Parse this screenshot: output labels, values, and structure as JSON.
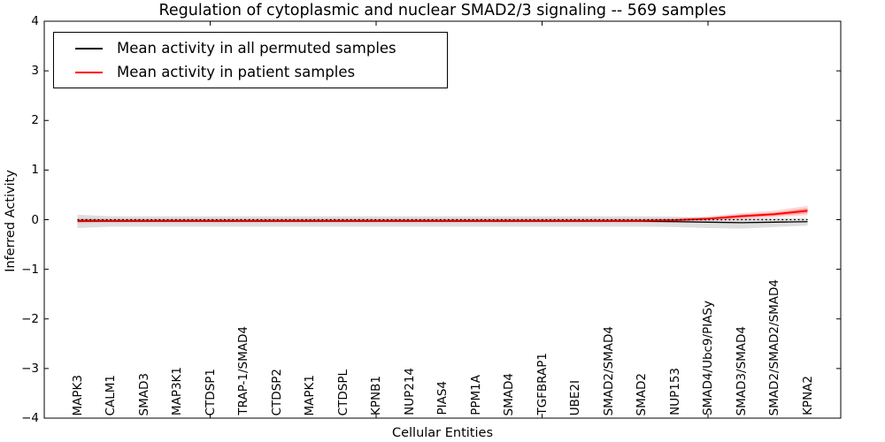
{
  "chart_data": {
    "type": "line",
    "title": "Regulation of cytoplasmic and nuclear SMAD2/3 signaling -- 569 samples",
    "xlabel": "Cellular Entities",
    "ylabel": "Inferred Activity",
    "ylim": [
      -4,
      4
    ],
    "ytick_labels": [
      "4",
      "3",
      "2",
      "1",
      "0",
      "−1",
      "−2",
      "−3",
      "−4"
    ],
    "ytick_values": [
      4,
      3,
      2,
      1,
      0,
      -1,
      -2,
      -3,
      -4
    ],
    "xticks_numeric": [
      5,
      10,
      15,
      20
    ],
    "grid": false,
    "legend_position": "upper left",
    "categories": [
      "MAPK3",
      "CALM1",
      "SMAD3",
      "MAP3K1",
      "CTDSP1",
      "TRAP-1/SMAD4",
      "CTDSP2",
      "MAPK1",
      "CTDSPL",
      "KPNB1",
      "NUP214",
      "PIAS4",
      "PPM1A",
      "SMAD4",
      "TGFBRAP1",
      "UBE2I",
      "SMAD2/SMAD4",
      "SMAD2",
      "NUP153",
      "SMAD4/Ubc9/PIASy",
      "SMAD3/SMAD4",
      "SMAD2/SMAD2/SMAD4",
      "KPNA2"
    ],
    "zero_line": {
      "y": 0,
      "style": "dotted",
      "color": "#000000"
    },
    "series": [
      {
        "name": "Mean activity in all permuted samples",
        "color": "#000000",
        "band_color": "rgba(0,0,0,0.13)",
        "values": [
          -0.03,
          -0.03,
          -0.03,
          -0.03,
          -0.03,
          -0.03,
          -0.03,
          -0.03,
          -0.03,
          -0.03,
          -0.03,
          -0.03,
          -0.03,
          -0.03,
          -0.03,
          -0.03,
          -0.03,
          -0.03,
          -0.04,
          -0.05,
          -0.06,
          -0.05,
          -0.04
        ],
        "band_upper": [
          0.1,
          0.07,
          0.07,
          0.07,
          0.07,
          0.07,
          0.07,
          0.07,
          0.07,
          0.07,
          0.07,
          0.07,
          0.07,
          0.07,
          0.07,
          0.07,
          0.07,
          0.07,
          0.06,
          0.04,
          0.03,
          0.03,
          0.03
        ],
        "band_lower": [
          -0.17,
          -0.14,
          -0.14,
          -0.14,
          -0.14,
          -0.14,
          -0.14,
          -0.14,
          -0.14,
          -0.14,
          -0.14,
          -0.14,
          -0.14,
          -0.14,
          -0.14,
          -0.14,
          -0.14,
          -0.14,
          -0.15,
          -0.17,
          -0.18,
          -0.15,
          -0.12
        ]
      },
      {
        "name": "Mean activity in patient samples",
        "color": "#ff0000",
        "band_color": "rgba(255,0,0,0.16)",
        "band_inner_color": "rgba(255,0,0,0.30)",
        "values": [
          -0.02,
          -0.02,
          -0.02,
          -0.02,
          -0.02,
          -0.02,
          -0.02,
          -0.02,
          -0.02,
          -0.02,
          -0.02,
          -0.02,
          -0.02,
          -0.02,
          -0.02,
          -0.02,
          -0.02,
          -0.02,
          -0.01,
          0.02,
          0.07,
          0.11,
          0.18
        ],
        "band_upper": [
          0.03,
          0.02,
          0.02,
          0.02,
          0.02,
          0.02,
          0.02,
          0.02,
          0.02,
          0.02,
          0.02,
          0.02,
          0.02,
          0.02,
          0.02,
          0.02,
          0.02,
          0.02,
          0.03,
          0.07,
          0.13,
          0.18,
          0.28
        ],
        "band_lower": [
          -0.07,
          -0.06,
          -0.06,
          -0.06,
          -0.06,
          -0.06,
          -0.06,
          -0.06,
          -0.06,
          -0.06,
          -0.06,
          -0.06,
          -0.06,
          -0.06,
          -0.06,
          -0.06,
          -0.06,
          -0.06,
          -0.05,
          -0.02,
          0.01,
          0.05,
          0.09
        ],
        "band_inner_upper": [
          0.01,
          0.0,
          0.0,
          0.0,
          0.0,
          0.0,
          0.0,
          0.0,
          0.0,
          0.0,
          0.0,
          0.0,
          0.0,
          0.0,
          0.0,
          0.0,
          0.0,
          0.0,
          0.01,
          0.04,
          0.1,
          0.14,
          0.23
        ],
        "band_inner_lower": [
          -0.05,
          -0.04,
          -0.04,
          -0.04,
          -0.04,
          -0.04,
          -0.04,
          -0.04,
          -0.04,
          -0.04,
          -0.04,
          -0.04,
          -0.04,
          -0.04,
          -0.04,
          -0.04,
          -0.04,
          -0.04,
          -0.03,
          0.0,
          0.04,
          0.08,
          0.13
        ]
      }
    ]
  },
  "legend": {
    "items": [
      {
        "label": "Mean activity in all permuted samples",
        "color": "#000000"
      },
      {
        "label": "Mean activity in patient samples",
        "color": "#ff0000"
      }
    ]
  }
}
